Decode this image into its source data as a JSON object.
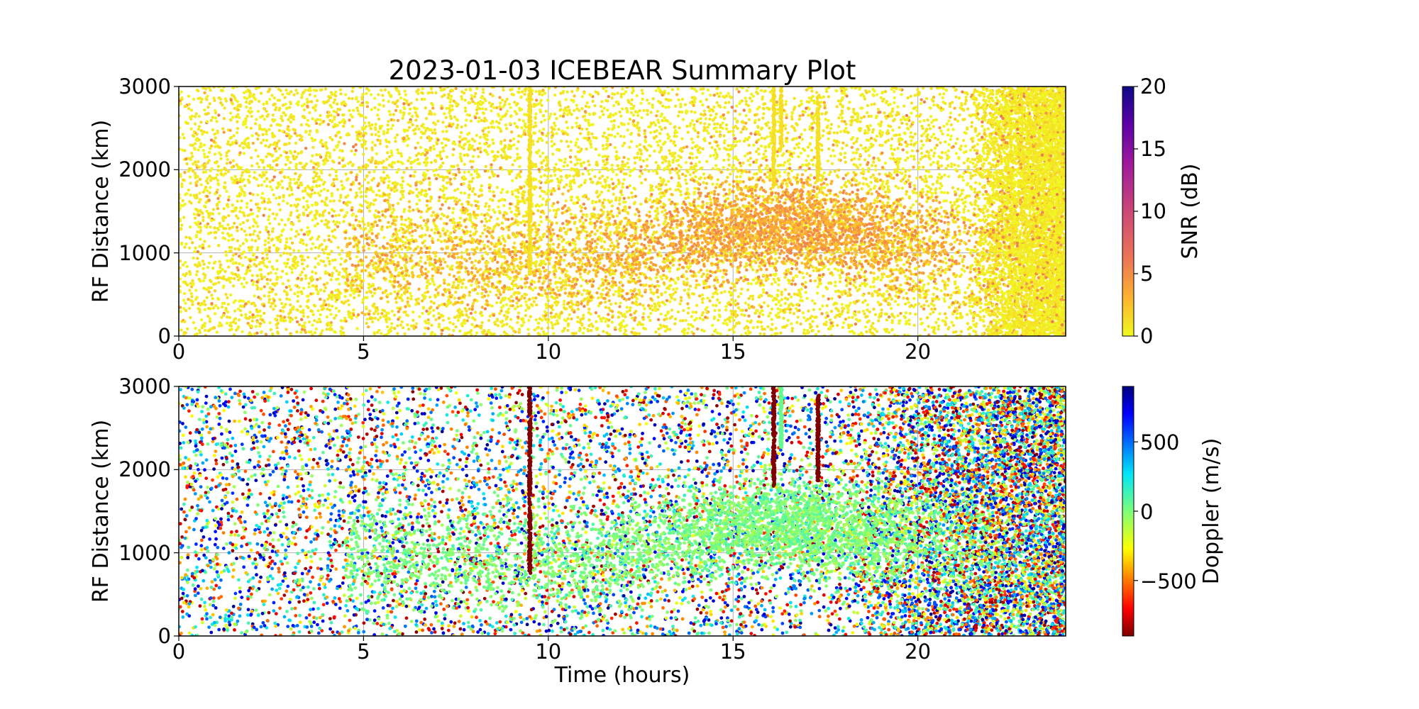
{
  "chart_data": [
    {
      "type": "scatter",
      "title": "2023-01-03 ICEBEAR Summary Plot",
      "xlabel": "",
      "ylabel": "RF Distance (km)",
      "xlim": [
        0,
        24
      ],
      "ylim": [
        0,
        3000
      ],
      "xticks": [
        "0",
        "5",
        "10",
        "15",
        "20"
      ],
      "yticks": [
        "0",
        "1000",
        "2000",
        "3000"
      ],
      "grid": true,
      "color_variable": "SNR (dB)",
      "colorbar": {
        "label": "SNR (dB)",
        "colormap": "plasma_r",
        "range": [
          0,
          20
        ],
        "ticks": [
          "0",
          "5",
          "10",
          "15",
          "20"
        ]
      },
      "features": {
        "background_points_per_hour_approx": 420,
        "dense_region": {
          "x_range": [
            21.5,
            24
          ],
          "y_range": [
            0,
            3000
          ]
        },
        "enhanced_cluster": {
          "x_center": 16.5,
          "y_center": 1350,
          "snr_range": [
            2,
            8
          ]
        },
        "vertical_streaks": [
          {
            "x": 9.5,
            "y_range": [
              750,
              3000
            ]
          },
          {
            "x": 16.1,
            "y_range": [
              1800,
              3000
            ]
          },
          {
            "x": 16.3,
            "y_range": [
              2250,
              3000
            ]
          },
          {
            "x": 17.3,
            "y_range": [
              1850,
              2900
            ]
          }
        ]
      }
    },
    {
      "type": "scatter",
      "title": "",
      "xlabel": "Time (hours)",
      "ylabel": "RF Distance (km)",
      "xlim": [
        0,
        24
      ],
      "ylim": [
        0,
        3000
      ],
      "xticks": [
        "0",
        "5",
        "10",
        "15",
        "20"
      ],
      "yticks": [
        "0",
        "1000",
        "2000",
        "3000"
      ],
      "grid": true,
      "color_variable": "Doppler (m/s)",
      "colorbar": {
        "label": "Doppler (m/s)",
        "colormap": "jet_r",
        "range": [
          -900,
          900
        ],
        "ticks": [
          "−500",
          "0",
          "500"
        ]
      },
      "features": {
        "background_points_per_hour_approx": 300,
        "dense_region": {
          "x_range": [
            18,
            24
          ],
          "y_range": [
            0,
            3000
          ]
        },
        "enhanced_cluster": {
          "x_center": 16.5,
          "y_center": 1350,
          "doppler_range": [
            -100,
            100
          ]
        },
        "vertical_streaks": [
          {
            "x": 9.5,
            "y_range": [
              750,
              3000
            ],
            "doppler": -900
          },
          {
            "x": 16.1,
            "y_range": [
              1800,
              3000
            ],
            "doppler": -900
          },
          {
            "x": 16.3,
            "y_range": [
              2250,
              3000
            ],
            "doppler": 50
          },
          {
            "x": 17.3,
            "y_range": [
              1850,
              2900
            ],
            "doppler": -900
          }
        ]
      }
    }
  ]
}
